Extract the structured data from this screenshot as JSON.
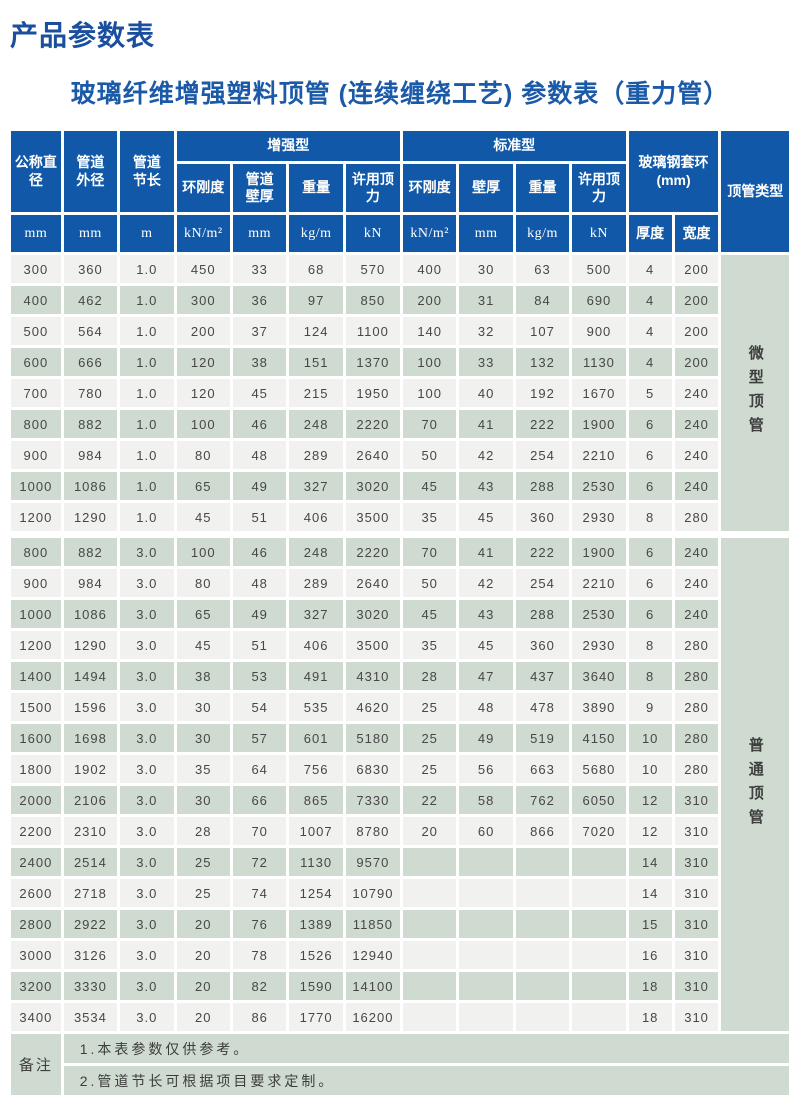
{
  "page": {
    "title": "产品参数表",
    "subtitle": "玻璃纤维增强塑料顶管 (连续缠绕工艺) 参数表（重力管）"
  },
  "colors": {
    "header_blue": "#1159a8",
    "title_blue": "#1a4f9e",
    "row_green": "#cfdbd0",
    "row_white": "#f1f1ef",
    "text_dark": "#474747"
  },
  "table": {
    "header": {
      "col_diameter": "公称直径",
      "col_outer": "管道\n外径",
      "col_length": "管道\n节长",
      "group_reinforced": "增强型",
      "group_standard": "标准型",
      "col_ring_r": "环刚度",
      "col_wall_r": "管道\n壁厚",
      "col_weight_r": "重量",
      "col_force_r": "许用顶力",
      "col_ring_s": "环刚度",
      "col_wall_s": "壁厚",
      "col_weight_s": "重量",
      "col_force_s": "许用顶力",
      "group_collar": "玻璃钢套环\n(mm)",
      "col_thickness": "厚度",
      "col_width": "宽度",
      "col_type": "顶管类型",
      "units": [
        "mm",
        "mm",
        "m",
        "kN/m²",
        "mm",
        "kg/m",
        "kN",
        "kN/m²",
        "mm",
        "kg/m",
        "kN"
      ]
    },
    "sections": [
      {
        "type_label": "微型顶管",
        "zebra_start": "white",
        "rows": [
          [
            "300",
            "360",
            "1.0",
            "450",
            "33",
            "68",
            "570",
            "400",
            "30",
            "63",
            "500",
            "4",
            "200"
          ],
          [
            "400",
            "462",
            "1.0",
            "300",
            "36",
            "97",
            "850",
            "200",
            "31",
            "84",
            "690",
            "4",
            "200"
          ],
          [
            "500",
            "564",
            "1.0",
            "200",
            "37",
            "124",
            "1100",
            "140",
            "32",
            "107",
            "900",
            "4",
            "200"
          ],
          [
            "600",
            "666",
            "1.0",
            "120",
            "38",
            "151",
            "1370",
            "100",
            "33",
            "132",
            "1130",
            "4",
            "200"
          ],
          [
            "700",
            "780",
            "1.0",
            "120",
            "45",
            "215",
            "1950",
            "100",
            "40",
            "192",
            "1670",
            "5",
            "240"
          ],
          [
            "800",
            "882",
            "1.0",
            "100",
            "46",
            "248",
            "2220",
            "70",
            "41",
            "222",
            "1900",
            "6",
            "240"
          ],
          [
            "900",
            "984",
            "1.0",
            "80",
            "48",
            "289",
            "2640",
            "50",
            "42",
            "254",
            "2210",
            "6",
            "240"
          ],
          [
            "1000",
            "1086",
            "1.0",
            "65",
            "49",
            "327",
            "3020",
            "45",
            "43",
            "288",
            "2530",
            "6",
            "240"
          ],
          [
            "1200",
            "1290",
            "1.0",
            "45",
            "51",
            "406",
            "3500",
            "35",
            "45",
            "360",
            "2930",
            "8",
            "280"
          ]
        ]
      },
      {
        "type_label": "普通顶管",
        "zebra_start": "green",
        "rows": [
          [
            "800",
            "882",
            "3.0",
            "100",
            "46",
            "248",
            "2220",
            "70",
            "41",
            "222",
            "1900",
            "6",
            "240"
          ],
          [
            "900",
            "984",
            "3.0",
            "80",
            "48",
            "289",
            "2640",
            "50",
            "42",
            "254",
            "2210",
            "6",
            "240"
          ],
          [
            "1000",
            "1086",
            "3.0",
            "65",
            "49",
            "327",
            "3020",
            "45",
            "43",
            "288",
            "2530",
            "6",
            "240"
          ],
          [
            "1200",
            "1290",
            "3.0",
            "45",
            "51",
            "406",
            "3500",
            "35",
            "45",
            "360",
            "2930",
            "8",
            "280"
          ],
          [
            "1400",
            "1494",
            "3.0",
            "38",
            "53",
            "491",
            "4310",
            "28",
            "47",
            "437",
            "3640",
            "8",
            "280"
          ],
          [
            "1500",
            "1596",
            "3.0",
            "30",
            "54",
            "535",
            "4620",
            "25",
            "48",
            "478",
            "3890",
            "9",
            "280"
          ],
          [
            "1600",
            "1698",
            "3.0",
            "30",
            "57",
            "601",
            "5180",
            "25",
            "49",
            "519",
            "4150",
            "10",
            "280"
          ],
          [
            "1800",
            "1902",
            "3.0",
            "35",
            "64",
            "756",
            "6830",
            "25",
            "56",
            "663",
            "5680",
            "10",
            "280"
          ],
          [
            "2000",
            "2106",
            "3.0",
            "30",
            "66",
            "865",
            "7330",
            "22",
            "58",
            "762",
            "6050",
            "12",
            "310"
          ],
          [
            "2200",
            "2310",
            "3.0",
            "28",
            "70",
            "1007",
            "8780",
            "20",
            "60",
            "866",
            "7020",
            "12",
            "310"
          ],
          [
            "2400",
            "2514",
            "3.0",
            "25",
            "72",
            "1130",
            "9570",
            "",
            "",
            "",
            "",
            "14",
            "310"
          ],
          [
            "2600",
            "2718",
            "3.0",
            "25",
            "74",
            "1254",
            "10790",
            "",
            "",
            "",
            "",
            "14",
            "310"
          ],
          [
            "2800",
            "2922",
            "3.0",
            "20",
            "76",
            "1389",
            "11850",
            "",
            "",
            "",
            "",
            "15",
            "310"
          ],
          [
            "3000",
            "3126",
            "3.0",
            "20",
            "78",
            "1526",
            "12940",
            "",
            "",
            "",
            "",
            "16",
            "310"
          ],
          [
            "3200",
            "3330",
            "3.0",
            "20",
            "82",
            "1590",
            "14100",
            "",
            "",
            "",
            "",
            "18",
            "310"
          ],
          [
            "3400",
            "3534",
            "3.0",
            "20",
            "86",
            "1770",
            "16200",
            "",
            "",
            "",
            "",
            "18",
            "310"
          ]
        ]
      }
    ],
    "footer": {
      "label": "备注",
      "notes": [
        "1.本表参数仅供参考。",
        "2.管道节长可根据项目要求定制。"
      ]
    }
  }
}
